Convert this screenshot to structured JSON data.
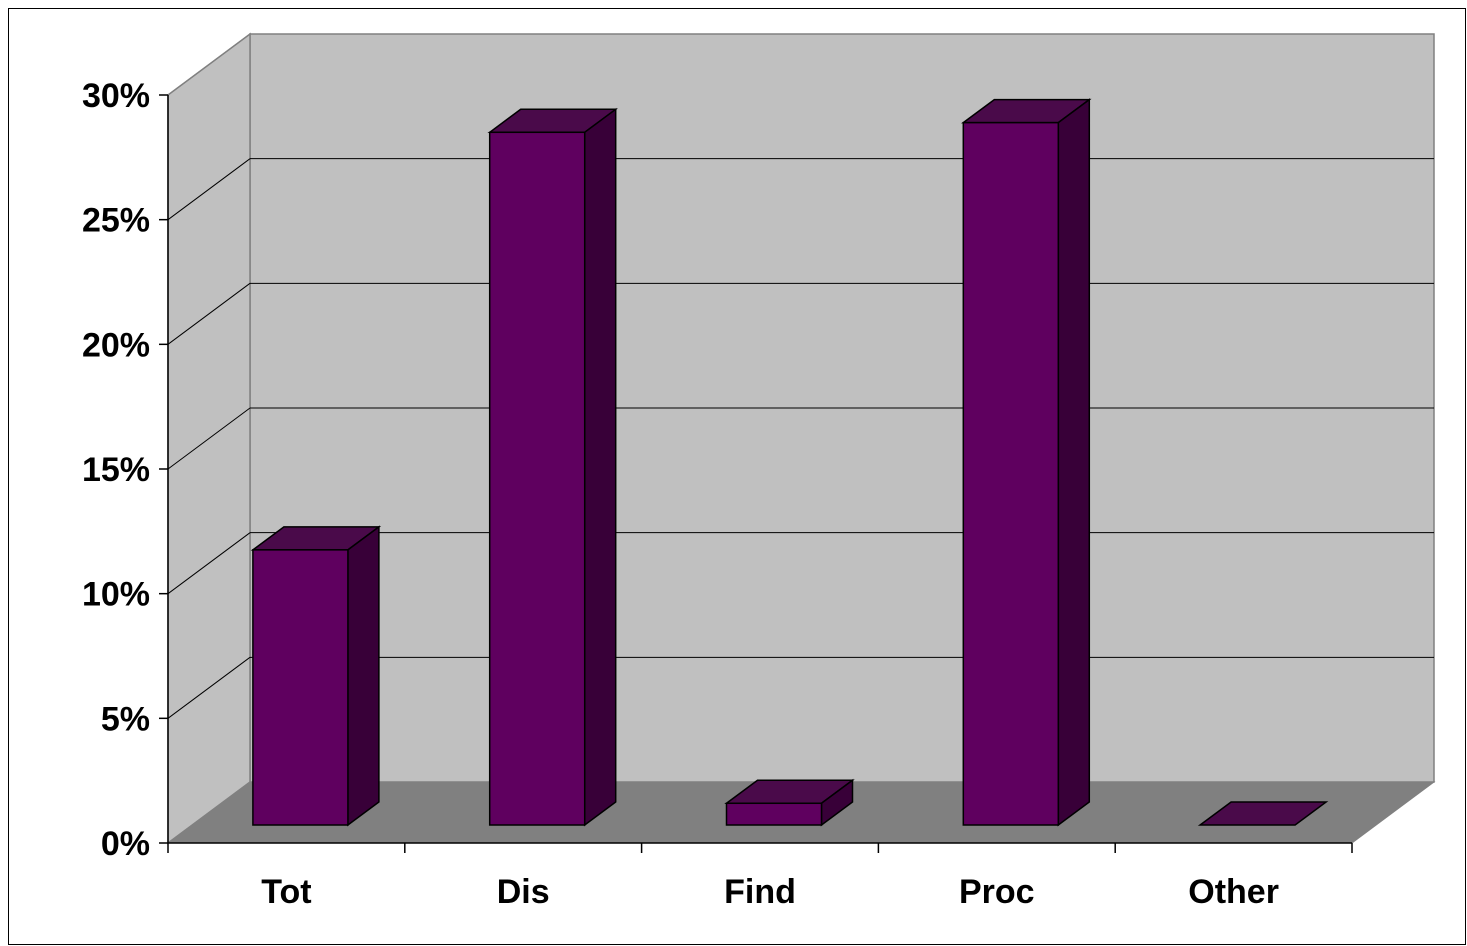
{
  "chart_data": {
    "type": "bar",
    "style": "3d-column",
    "categories": [
      "Tot",
      "Dis",
      "Find",
      "Proc",
      "Other"
    ],
    "values": [
      11.4,
      28.7,
      0.9,
      29.1,
      0.0
    ],
    "ylim": [
      0,
      30
    ],
    "yticks": [
      "0%",
      "5%",
      "10%",
      "15%",
      "20%",
      "25%",
      "30%"
    ],
    "ytick_values": [
      0,
      5,
      10,
      15,
      20,
      25,
      30
    ],
    "grid": true,
    "colors": {
      "bar_front": "#5f005f",
      "bar_top": "#4a0a4a",
      "bar_side": "#380038",
      "wall": "#c0c0c0",
      "floor": "#808080"
    }
  }
}
